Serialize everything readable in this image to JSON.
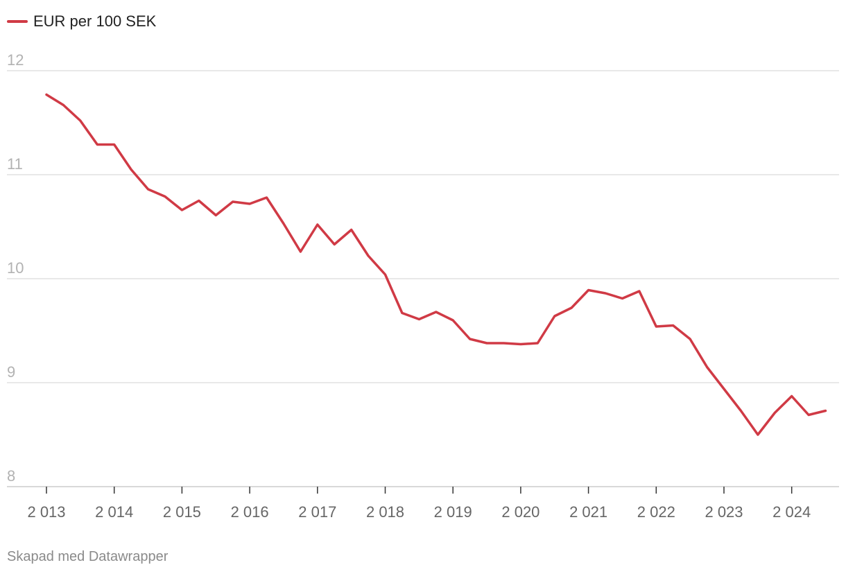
{
  "legend": {
    "label": "EUR per 100 SEK",
    "color": "#d03a45"
  },
  "credit": "Skapad med Datawrapper",
  "colors": {
    "grid": "#e0e0e0",
    "axis_text": "#b2b2b2",
    "x_text": "#666666",
    "axis_line": "#cccccc"
  },
  "chart_data": {
    "type": "line",
    "title": "",
    "xlabel": "",
    "ylabel": "",
    "xlim": [
      2013,
      2024.5
    ],
    "ylim": [
      8,
      12
    ],
    "y_ticks": [
      8,
      9,
      10,
      11,
      12
    ],
    "x_ticks": [
      2013,
      2014,
      2015,
      2016,
      2017,
      2018,
      2019,
      2020,
      2021,
      2022,
      2023,
      2024
    ],
    "x_tick_labels": [
      "2 013",
      "2 014",
      "2 015",
      "2 016",
      "2 017",
      "2 018",
      "2 019",
      "2 020",
      "2 021",
      "2 022",
      "2 023",
      "2 024"
    ],
    "grid": true,
    "legend_position": "top-left",
    "series": [
      {
        "name": "EUR per 100 SEK",
        "color": "#d03a45",
        "x": [
          2013.0,
          2013.25,
          2013.5,
          2013.75,
          2014.0,
          2014.25,
          2014.5,
          2014.75,
          2015.0,
          2015.25,
          2015.5,
          2015.75,
          2016.0,
          2016.25,
          2016.5,
          2016.75,
          2017.0,
          2017.25,
          2017.5,
          2017.75,
          2018.0,
          2018.25,
          2018.5,
          2018.75,
          2019.0,
          2019.25,
          2019.5,
          2019.75,
          2020.0,
          2020.25,
          2020.5,
          2020.75,
          2021.0,
          2021.25,
          2021.5,
          2021.75,
          2022.0,
          2022.25,
          2022.5,
          2022.75,
          2023.0,
          2023.25,
          2023.5,
          2023.75,
          2024.0,
          2024.25,
          2024.5
        ],
        "values": [
          11.77,
          11.67,
          11.52,
          11.29,
          11.29,
          11.05,
          10.86,
          10.79,
          10.66,
          10.75,
          10.61,
          10.74,
          10.72,
          10.78,
          10.53,
          10.26,
          10.52,
          10.33,
          10.47,
          10.22,
          10.04,
          9.67,
          9.61,
          9.68,
          9.6,
          9.42,
          9.38,
          9.38,
          9.37,
          9.38,
          9.64,
          9.72,
          9.89,
          9.86,
          9.81,
          9.88,
          9.54,
          9.55,
          9.42,
          9.15,
          8.94,
          8.73,
          8.5,
          8.71,
          8.87,
          8.69,
          8.73
        ]
      }
    ]
  }
}
